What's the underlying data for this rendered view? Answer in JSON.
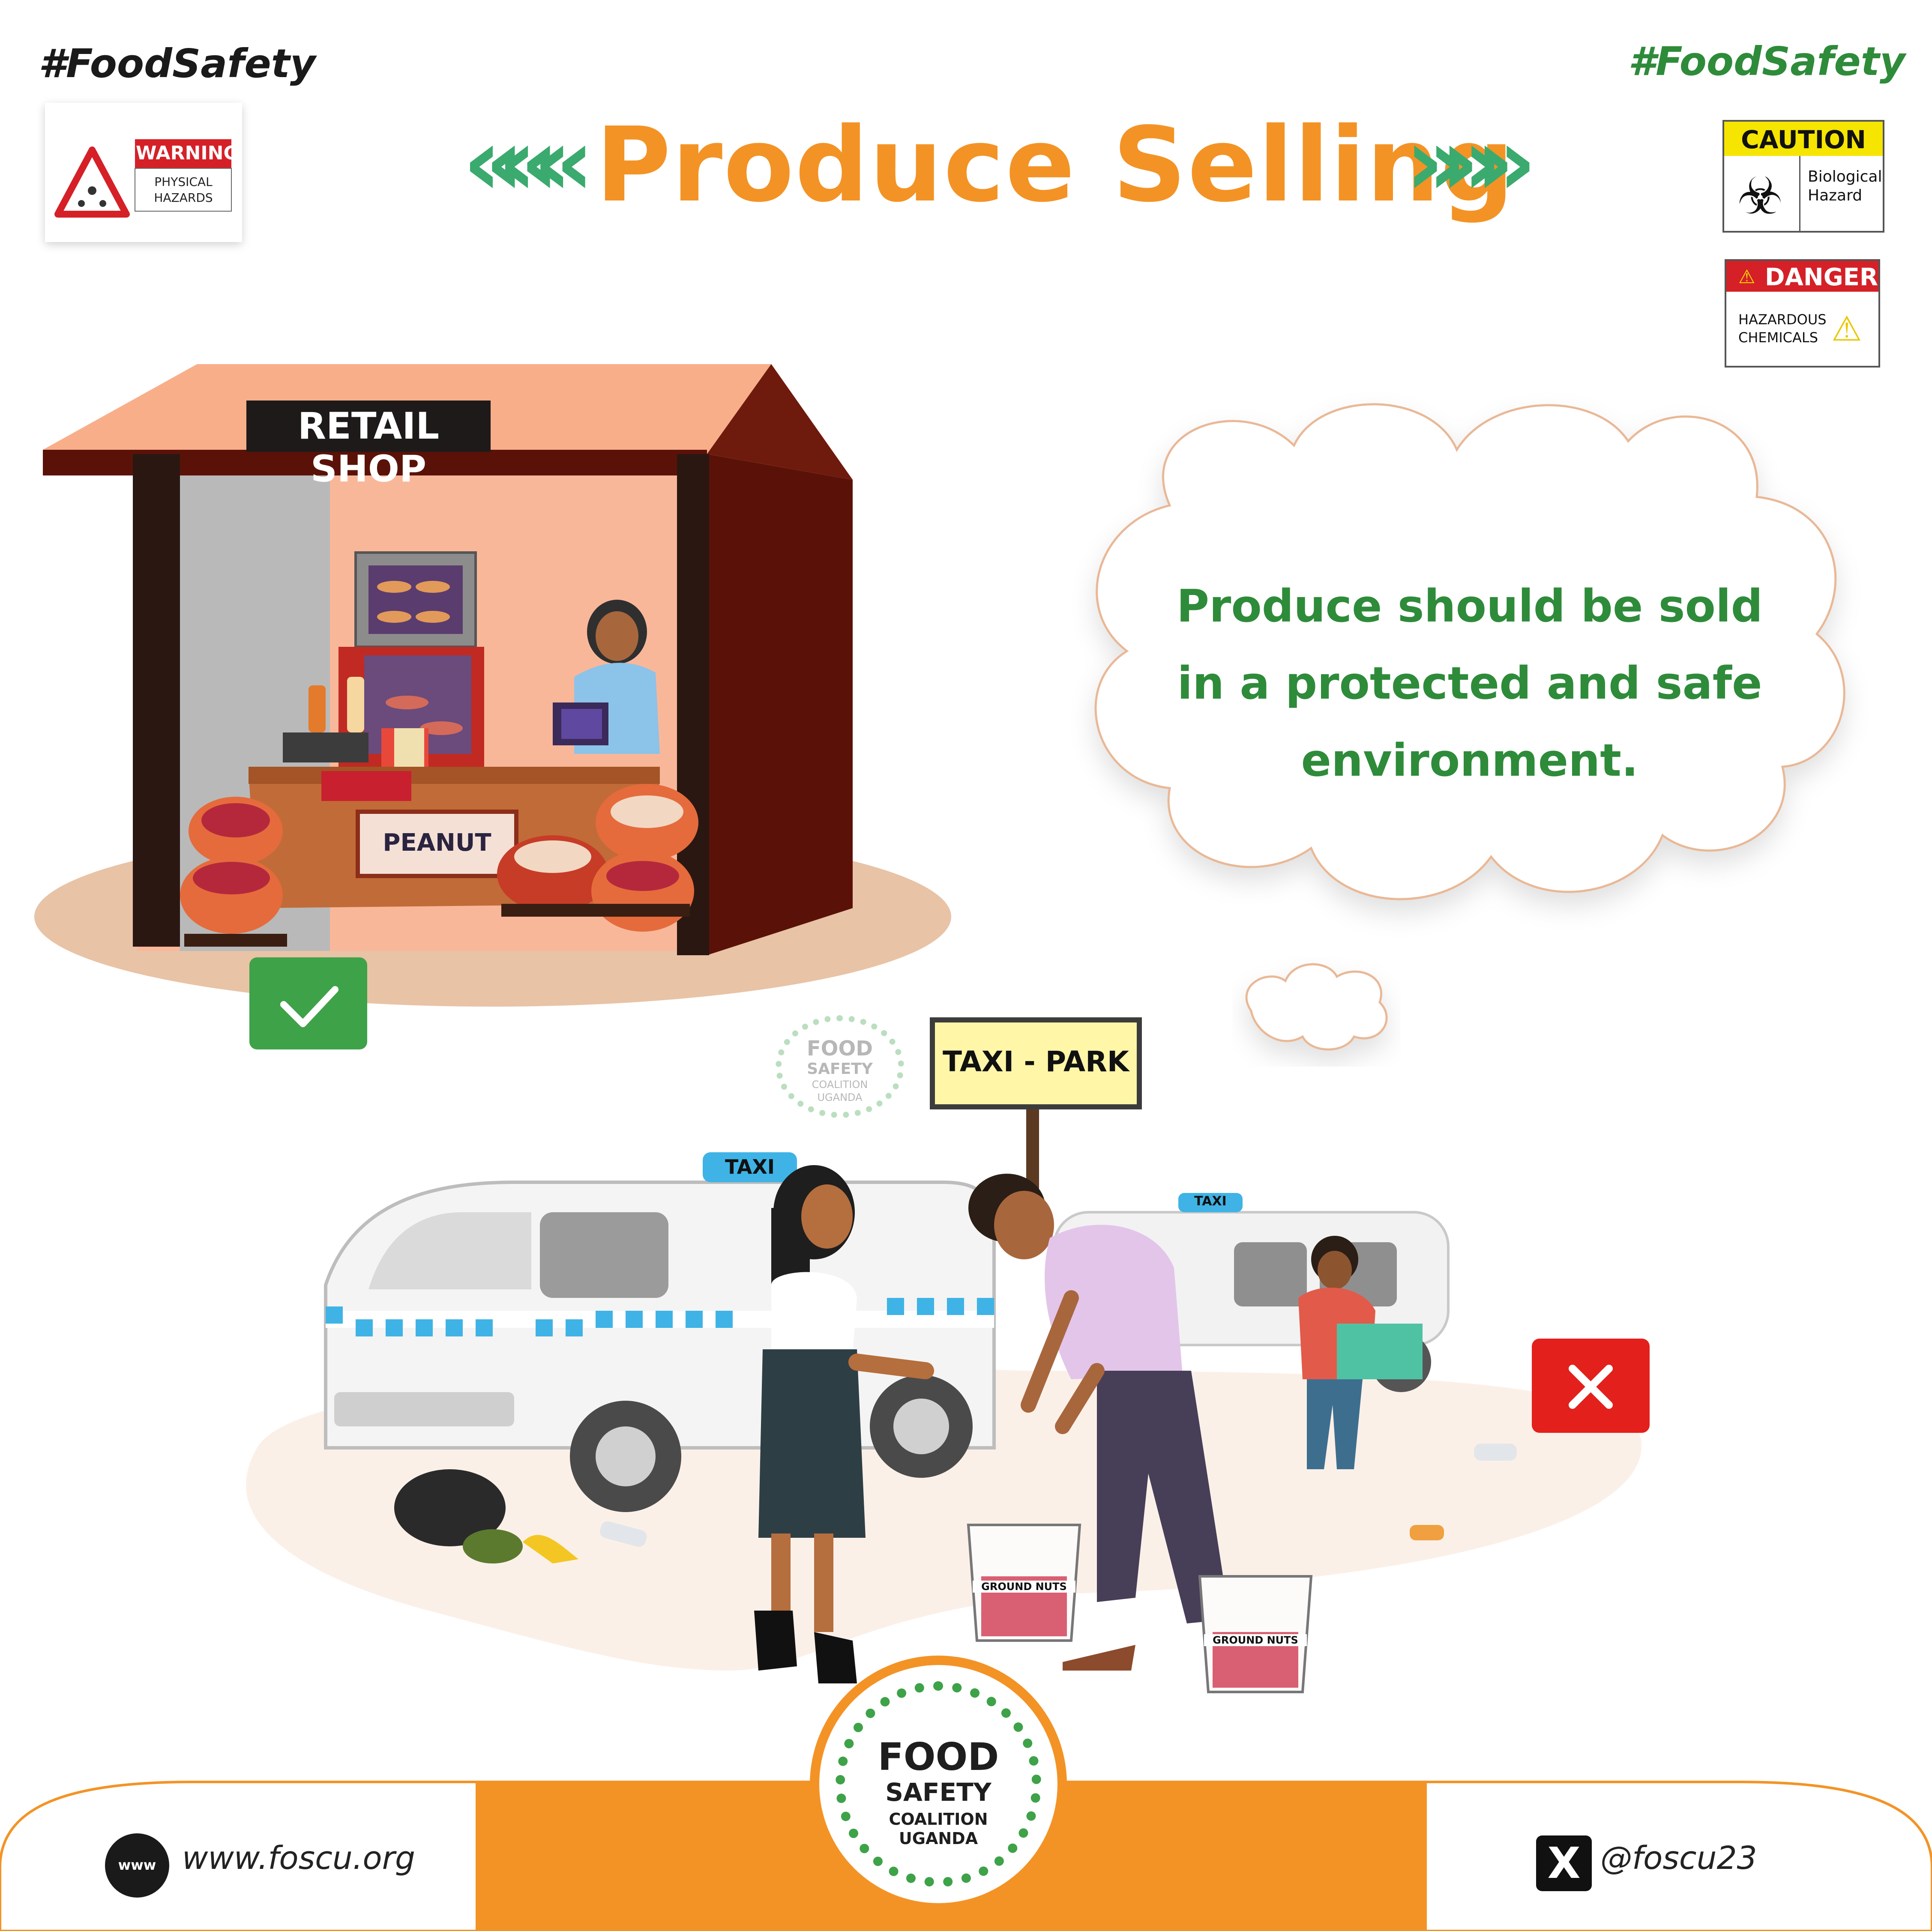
{
  "header": {
    "hashtag_left": "#FoodSafety",
    "hashtag_right": "#FoodSafety",
    "title": "Produce Selling",
    "accent_color": "#F39325",
    "hashtag_right_color": "#2E8B3A"
  },
  "signs": {
    "warning": {
      "label": "WARNING",
      "line1": "PHYSICAL",
      "line2": "HAZARDS"
    },
    "caution": {
      "label": "CAUTION",
      "line1": "Biological",
      "line2": "Hazard"
    },
    "danger": {
      "label": "DANGER",
      "line1": "HAZARDOUS",
      "line2": "CHEMICALS"
    }
  },
  "shop": {
    "sign": "RETAIL SHOP",
    "counter_label": "PEANUT",
    "status_icon": "check-icon"
  },
  "bubble": {
    "line1": "Produce should be sold",
    "line2": "in a protected and safe",
    "line3": "environment."
  },
  "taxi_park": {
    "sign": "TAXI - PARK",
    "taxi_label": "TAXI",
    "bucket_label": "GROUND NUTS",
    "status_icon": "cross-icon"
  },
  "watermark": {
    "line1": "FOOD",
    "line2": "SAFETY",
    "line3": "COALITION",
    "line4": "UGANDA"
  },
  "logo": {
    "line1": "FOOD",
    "line2": "SAFETY",
    "line3": "COALITION",
    "line4": "UGANDA"
  },
  "footer": {
    "www_badge": "www",
    "website": "www.foscu.org",
    "handle": "@foscu23",
    "x_icon": "x-logo-icon",
    "bar_color": "#F39325"
  }
}
